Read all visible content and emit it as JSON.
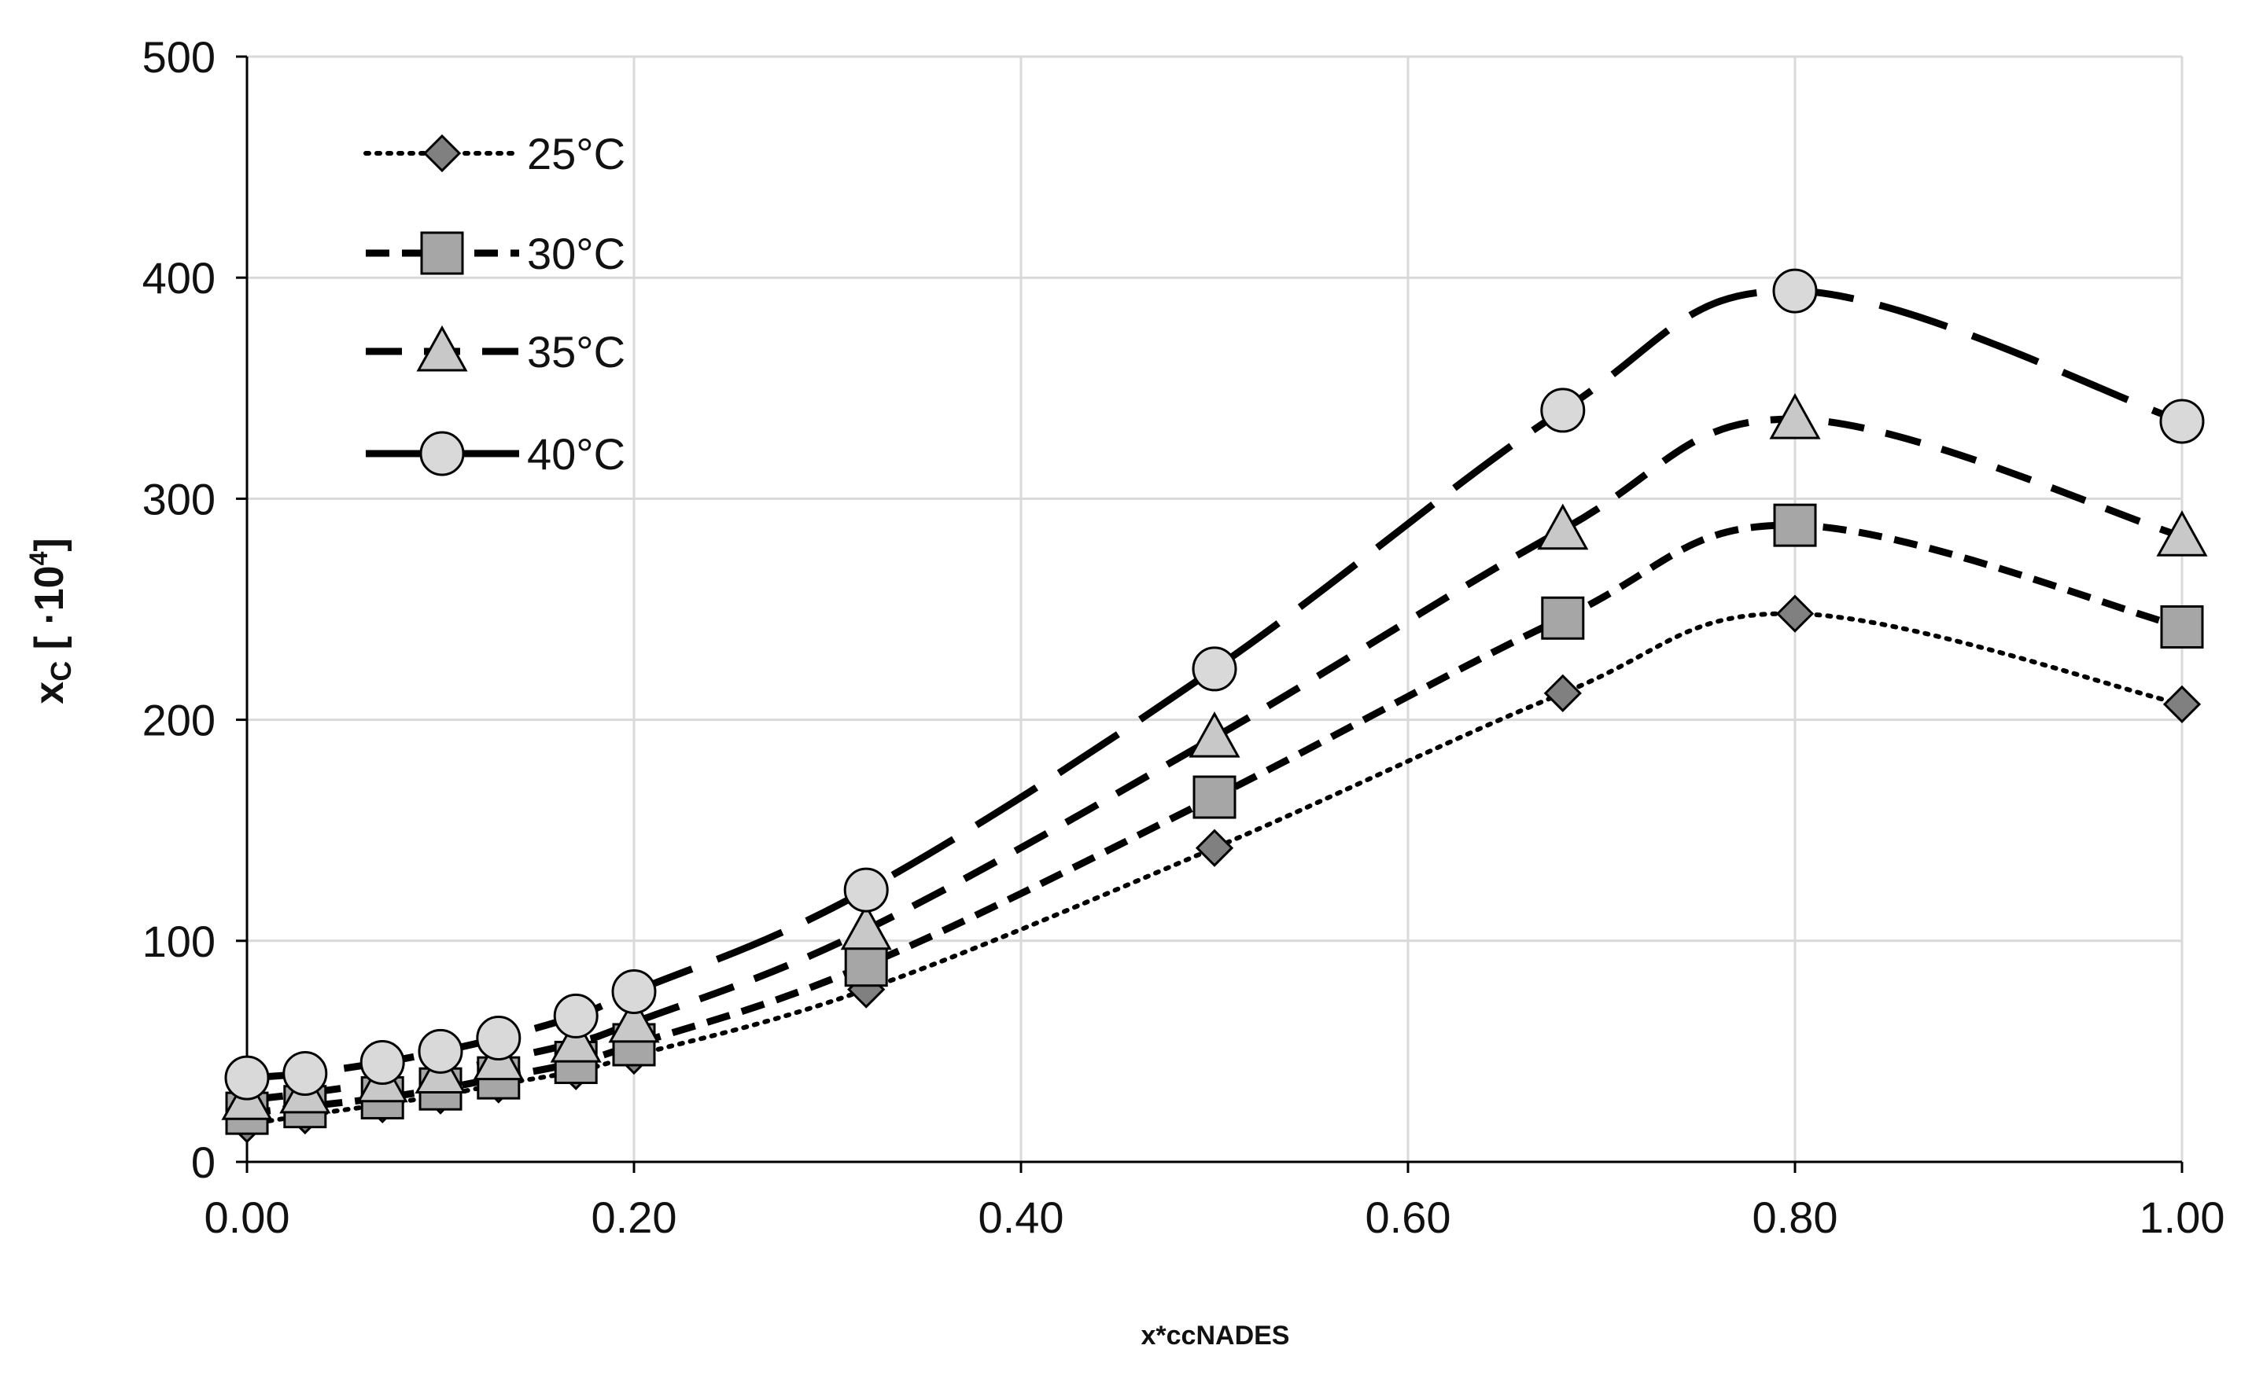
{
  "chart_data": {
    "type": "line",
    "title": "",
    "xlabel": "x*ccNADES",
    "ylabel": {
      "main": "x",
      "subscript": "C",
      "bracket_open": " [ ·10",
      "superscript": "4",
      "bracket_close": "]"
    },
    "xlim": [
      0,
      1
    ],
    "ylim": [
      0,
      500
    ],
    "xticks": [
      0,
      0.2,
      0.4,
      0.6,
      0.8,
      1.0
    ],
    "xtick_labels": [
      "0.00",
      "0.20",
      "0.40",
      "0.60",
      "0.80",
      "1.00"
    ],
    "yticks": [
      0,
      100,
      200,
      300,
      400,
      500
    ],
    "ytick_labels": [
      "0",
      "100",
      "200",
      "300",
      "400",
      "500"
    ],
    "grid": true,
    "legend_position": "top-left",
    "x": [
      0.0,
      0.03,
      0.07,
      0.1,
      0.13,
      0.17,
      0.2,
      0.32,
      0.5,
      0.68,
      0.8,
      1.0
    ],
    "series": [
      {
        "name": "25°C",
        "marker": "diamond",
        "line_style": "dotted",
        "marker_color": "#808080",
        "values": [
          17,
          21,
          26,
          30,
          35,
          41,
          48,
          78,
          142,
          212,
          248,
          207
        ]
      },
      {
        "name": "30°C",
        "marker": "square",
        "line_style": "short-dash",
        "marker_color": "#a6a6a6",
        "values": [
          22,
          25,
          29,
          33,
          38,
          45,
          53,
          89,
          165,
          246,
          288,
          242
        ]
      },
      {
        "name": "35°C",
        "marker": "triangle",
        "line_style": "dash",
        "marker_color": "#c8c8c8",
        "values": [
          28,
          31,
          36,
          40,
          46,
          54,
          63,
          105,
          192,
          286,
          336,
          283
        ]
      },
      {
        "name": "40°C",
        "marker": "circle",
        "line_style": "long-dash",
        "marker_color": "#d9d9d9",
        "values": [
          38,
          40,
          45,
          50,
          56,
          66,
          77,
          123,
          223,
          340,
          394,
          335
        ]
      }
    ]
  }
}
